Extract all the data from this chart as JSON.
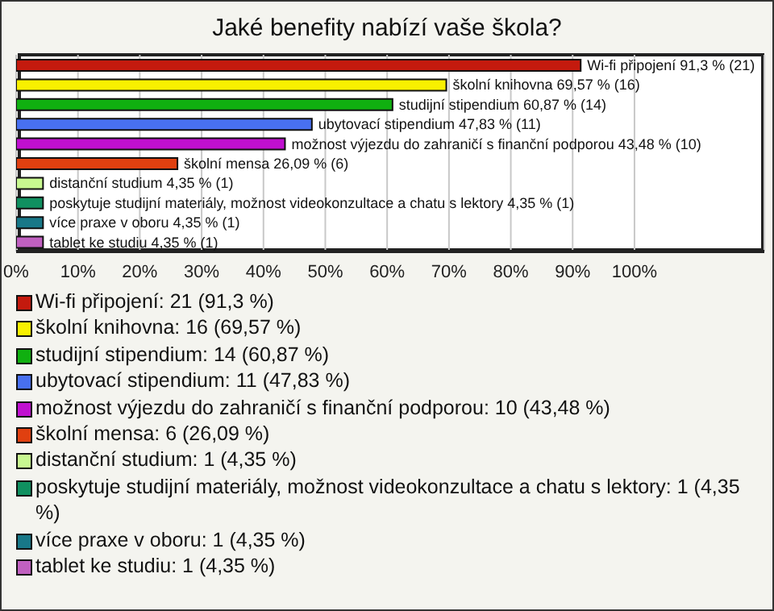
{
  "chart_data": {
    "type": "bar",
    "orientation": "horizontal",
    "title": "Jaké benefity nabízí vaše škola?",
    "categories": [
      null,
      null,
      null,
      null,
      null,
      null,
      null,
      null,
      null,
      null
    ],
    "values": [
      91.3,
      69.57,
      60.87,
      47.83,
      43.48,
      26.09,
      4.35,
      4.35,
      4.35,
      4.35
    ],
    "colors": [
      "#c41a0e",
      "#f8f000",
      "#10b010",
      "#4870f0",
      "#c010d0",
      "#e04010",
      "#c8f890",
      "#109060",
      "#187888",
      "#c060c0"
    ],
    "value_labels": [
      "Wi-fi připojení 91,3 % (21)",
      "školní knihovna 69,57 % (16)",
      "studijní stipendium 60,87 % (14)",
      "ubytovací stipendium 47,83 % (11)",
      "možnost výjezdu do zahraničí s finanční podporou 43,48 % (10)",
      "školní mensa 26,09 % (6)",
      "distanční studium 4,35 % (1)",
      "poskytuje studijní materiály, možnost videokonzultace a chatu s lektory 4,35 % (1)",
      "více praxe v oboru 4,35 % (1)",
      "tablet ke studiu 4,35 % (1)"
    ],
    "xlim": [
      0,
      121
    ],
    "xticks": [
      {
        "value": 0,
        "label": "0%"
      },
      {
        "value": 10,
        "label": "10%"
      },
      {
        "value": 20,
        "label": "20%"
      },
      {
        "value": 30,
        "label": "30%"
      },
      {
        "value": 40,
        "label": "40%"
      },
      {
        "value": 50,
        "label": "50%"
      },
      {
        "value": 60,
        "label": "60%"
      },
      {
        "value": 70,
        "label": "70%"
      },
      {
        "value": 80,
        "label": "80%"
      },
      {
        "value": 90,
        "label": "90%"
      },
      {
        "value": 100,
        "label": "100%"
      }
    ],
    "grid": "x",
    "annotations": [
      "Wi-fi připojení: 21 (91,3 %)",
      "školní knihovna: 16 (69,57 %)",
      "studijní stipendium: 14 (60,87 %)",
      "ubytovací stipendium: 11 (47,83 %)",
      "možnost výjezdu do zahraničí s finanční podporou: 10 (43,48 %)",
      "školní mensa: 6 (26,09 %)",
      "distanční studium: 1 (4,35 %)",
      "poskytuje studijní materiály, možnost videokonzultace a chatu s lektory: 1 (4,35 %)",
      "více praxe v oboru: 1 (4,35 %)",
      "tablet ke studiu: 1 (4,35 %)"
    ]
  }
}
